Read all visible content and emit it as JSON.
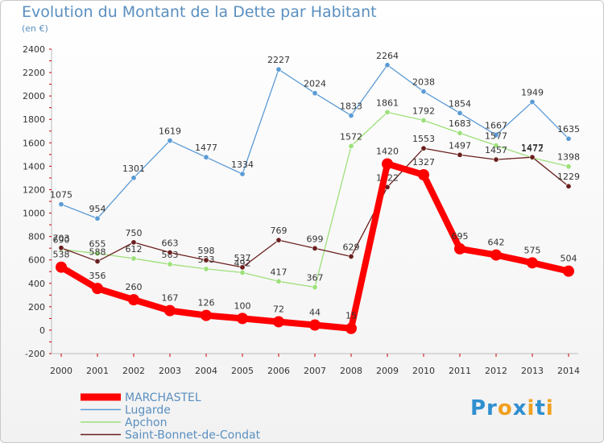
{
  "title": "Evolution du Montant de la Dette par Habitant",
  "subtitle": "(en €)",
  "logo_text": "Proxiti",
  "chart_data": {
    "type": "line",
    "x": [
      2000,
      2001,
      2002,
      2003,
      2004,
      2005,
      2006,
      2007,
      2008,
      2009,
      2010,
      2011,
      2012,
      2013,
      2014
    ],
    "ylim": [
      -200,
      2400
    ],
    "yticks": [
      -200,
      0,
      200,
      400,
      600,
      800,
      1000,
      1200,
      1400,
      1600,
      1800,
      2000,
      2200,
      2400
    ],
    "grid": false,
    "legend": "bottom-left",
    "series": [
      {
        "name": "Lugarde",
        "color": "#5b9bd5",
        "values": [
          1075,
          954,
          1301,
          1619,
          1477,
          1334,
          2227,
          2024,
          1833,
          2264,
          2038,
          1854,
          1667,
          1949,
          1635
        ]
      },
      {
        "name": "Apchon",
        "color": "#9de07a",
        "values": [
          690,
          655,
          612,
          563,
          523,
          492,
          417,
          367,
          1572,
          1861,
          1792,
          1683,
          1577,
          1472,
          1398
        ]
      },
      {
        "name": "Saint-Bonnet-de-Condat",
        "color": "#6b1f1f",
        "values": [
          703,
          588,
          750,
          663,
          598,
          537,
          769,
          699,
          629,
          1222,
          1553,
          1497,
          1457,
          1477,
          1229
        ]
      },
      {
        "name": "MARCHASTEL",
        "color": "#ff0000",
        "values": [
          538,
          356,
          260,
          167,
          126,
          100,
          72,
          44,
          15,
          1420,
          1327,
          695,
          642,
          575,
          504
        ]
      }
    ]
  }
}
